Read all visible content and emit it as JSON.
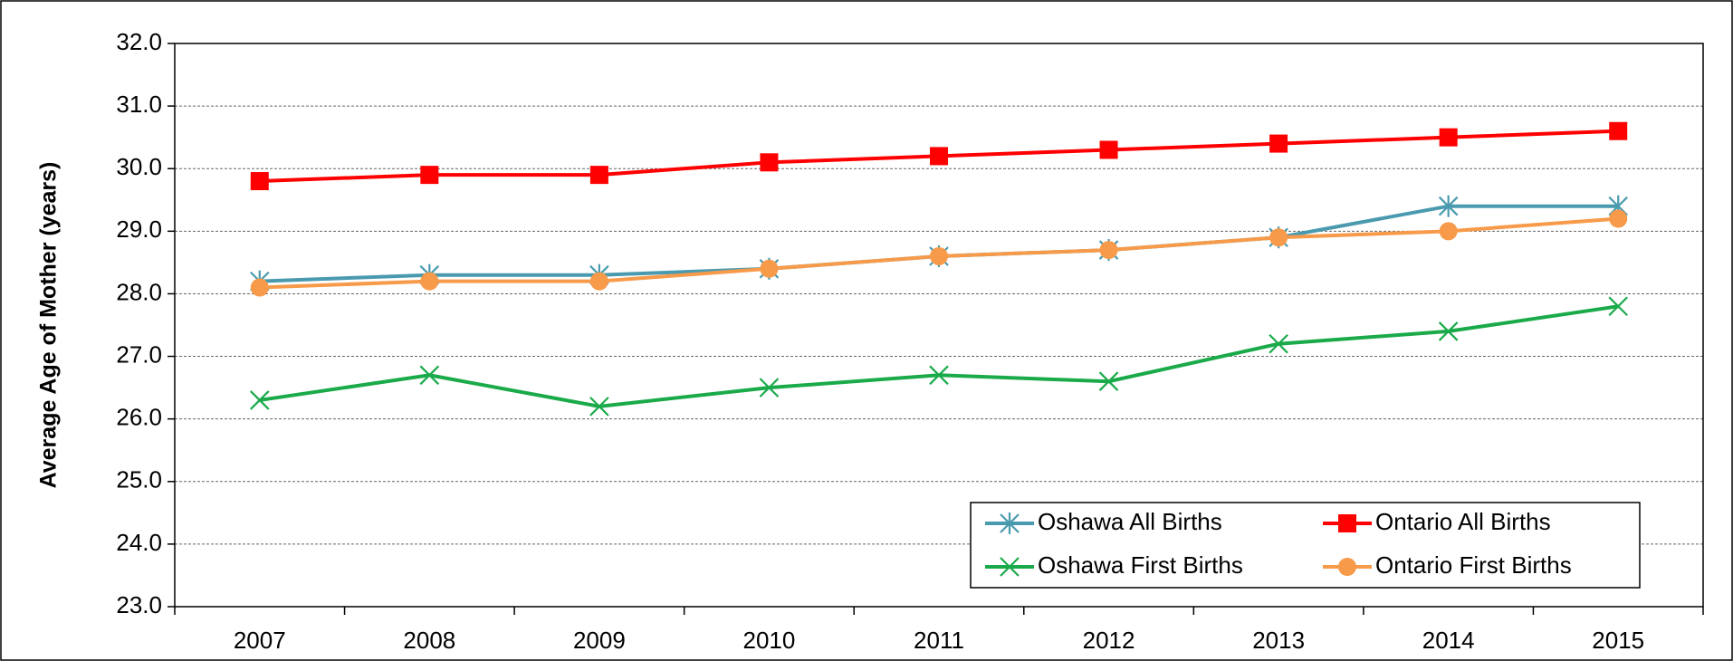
{
  "chart_data": {
    "type": "line",
    "y_label": "Average Age of Mother (years)",
    "categories": [
      "2007",
      "2008",
      "2009",
      "2010",
      "2011",
      "2012",
      "2013",
      "2014",
      "2015"
    ],
    "series": [
      {
        "name": "Oshawa All Births",
        "color": "#4a9aaf",
        "marker": "asterisk",
        "values": [
          28.2,
          28.3,
          28.3,
          28.4,
          28.6,
          28.7,
          28.9,
          29.4,
          29.4
        ]
      },
      {
        "name": "Ontario All Births",
        "color": "#ff0000",
        "marker": "square",
        "values": [
          29.8,
          29.9,
          29.9,
          30.1,
          30.2,
          30.3,
          30.4,
          30.5,
          30.6
        ]
      },
      {
        "name": "Oshawa First Births",
        "color": "#1aaa4a",
        "marker": "x",
        "values": [
          26.3,
          26.7,
          26.2,
          26.5,
          26.7,
          26.6,
          27.2,
          27.4,
          27.8
        ]
      },
      {
        "name": "Ontario First Births",
        "color": "#f79a4a",
        "marker": "circle",
        "values": [
          28.1,
          28.2,
          28.2,
          28.4,
          28.6,
          28.7,
          28.9,
          29.0,
          29.2
        ]
      }
    ],
    "ylim": [
      23,
      32
    ],
    "yticks": [
      {
        "value": 23,
        "label": "23.0"
      },
      {
        "value": 24,
        "label": "24.0"
      },
      {
        "value": 25,
        "label": "25.0"
      },
      {
        "value": 26,
        "label": "26.0"
      },
      {
        "value": 27,
        "label": "27.0"
      },
      {
        "value": 28,
        "label": "28.0"
      },
      {
        "value": 29,
        "label": "29.0"
      },
      {
        "value": 30,
        "label": "30.0"
      },
      {
        "value": 31,
        "label": "31.0"
      },
      {
        "value": 32,
        "label": "32.0"
      }
    ],
    "grid": true,
    "legend": "lower right"
  }
}
